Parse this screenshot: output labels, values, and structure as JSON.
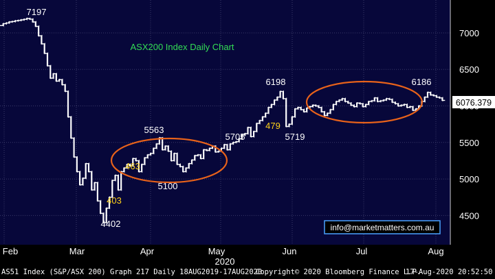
{
  "colors": {
    "background": "#07073a",
    "frame": "#000000",
    "grid": "#3a3a68",
    "price": "#ffffff",
    "title": "#33dd55",
    "annotation_white": "#ffffff",
    "annotation_yellow": "#ffd21a",
    "ellipse": "#e8621a",
    "last_price_box": "#ffffff",
    "watermark_text": "#ffffff",
    "watermark_border": "#4aa3ff"
  },
  "chart_data": {
    "type": "line",
    "title": "ASX200 Index Daily Chart",
    "ylim": [
      4100,
      7450
    ],
    "yticks": [
      4500,
      5000,
      5500,
      6000,
      6500,
      7000
    ],
    "xlabel": "2020",
    "x_tick_labels": [
      "Feb",
      "Mar",
      "Apr",
      "May",
      "Jun",
      "Jul",
      "Aug"
    ],
    "last_price": "6076.379",
    "series": [
      {
        "values": [
          7100,
          7125,
          7135,
          7150,
          7155,
          7165,
          7170,
          7178,
          7185,
          7197,
          7188,
          7150,
          7090,
          6960,
          6850,
          6720,
          6550,
          6380,
          6440,
          6340,
          6360,
          6290,
          6200,
          5850,
          5560,
          5300,
          5100,
          4920,
          5010,
          5210,
          5100,
          4850,
          4950,
          4700,
          4530,
          4402,
          4600,
          4750,
          4980,
          5050,
          4850,
          5100,
          5150,
          5200,
          5180,
          5280,
          5250,
          5100,
          5200,
          5290,
          5330,
          5350,
          5420,
          5480,
          5563,
          5400,
          5450,
          5380,
          5250,
          5350,
          5200,
          5170,
          5100,
          5150,
          5210,
          5260,
          5320,
          5330,
          5280,
          5400,
          5390,
          5420,
          5450,
          5370,
          5380,
          5420,
          5470,
          5400,
          5480,
          5500,
          5510,
          5550,
          5600,
          5620,
          5705,
          5580,
          5650,
          5760,
          5800,
          5850,
          5900,
          5980,
          6020,
          6080,
          6120,
          6198,
          6100,
          5719,
          5750,
          5850,
          5960,
          5980,
          5950,
          5920,
          5970,
          5990,
          6010,
          6000,
          5980,
          5920,
          5870,
          5900,
          5950,
          6020,
          6060,
          6080,
          6100,
          6060,
          6040,
          6010,
          5990,
          6040,
          6030,
          5990,
          6020,
          6060,
          6070,
          6110,
          6060,
          6070,
          6080,
          6100,
          6090,
          6050,
          6030,
          6000,
          6010,
          6020,
          5980,
          5990,
          5940,
          5960,
          6000,
          6060,
          6120,
          6186,
          6150,
          6140,
          6120,
          6110,
          6076
        ]
      }
    ],
    "annotations": [
      {
        "text": "7197",
        "color": "white"
      },
      {
        "text": "5563",
        "color": "white"
      },
      {
        "text": "463",
        "color": "yellow"
      },
      {
        "text": "5100",
        "color": "white"
      },
      {
        "text": "403",
        "color": "yellow"
      },
      {
        "text": "4402",
        "color": "white"
      },
      {
        "text": "6198",
        "color": "white"
      },
      {
        "text": "5705",
        "color": "white"
      },
      {
        "text": "479",
        "color": "yellow"
      },
      {
        "text": "5719",
        "color": "white"
      },
      {
        "text": "6186",
        "color": "white"
      }
    ],
    "ellipses": [
      {
        "label": "consolidation-apr-may"
      },
      {
        "label": "consolidation-jun-aug"
      }
    ],
    "grid": true
  },
  "watermark": "info@marketmatters.com.au",
  "footer": {
    "left": "AS51 Index (S&P/ASX 200) Graph 217  Daily 18AUG2019-17AUG2020",
    "center": "Copyright© 2020 Bloomberg Finance L.P.",
    "right": "17-Aug-2020 20:52:50"
  }
}
